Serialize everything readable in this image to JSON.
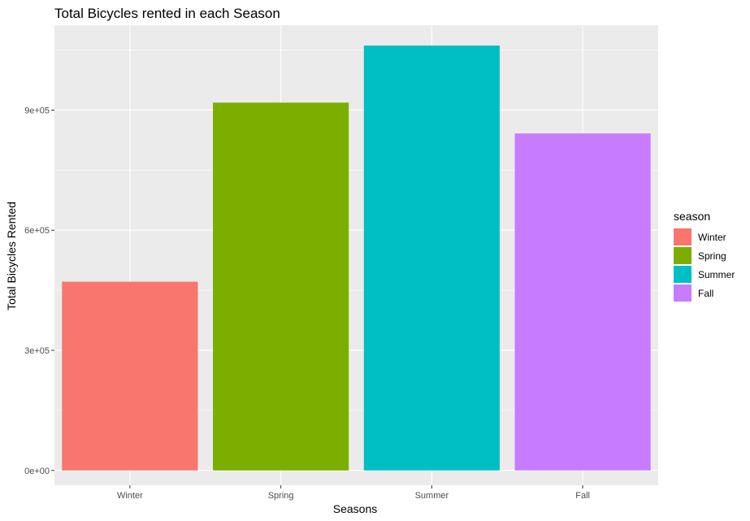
{
  "chart_data": {
    "type": "bar",
    "title": "Total Bicycles rented in each Season",
    "xlabel": "Seasons",
    "ylabel": "Total Bicycles Rented",
    "categories": [
      "Winter",
      "Spring",
      "Summer",
      "Fall"
    ],
    "values": [
      471348,
      918589,
      1061129,
      841613
    ],
    "colors": [
      "#F8766D",
      "#7CAE00",
      "#00BFC4",
      "#C77CFF"
    ],
    "ylim": [
      -37000,
      1112000
    ],
    "yticks": [
      0,
      300000,
      600000,
      900000
    ],
    "ytick_labels": [
      "0e+00",
      "3e+05",
      "6e+05",
      "9e+05"
    ],
    "grid": true,
    "legend": {
      "title": "season",
      "position": "right",
      "entries": [
        "Winter",
        "Spring",
        "Summer",
        "Fall"
      ]
    },
    "panel_background": "#EBEBEB",
    "grid_color": "#FFFFFF"
  }
}
